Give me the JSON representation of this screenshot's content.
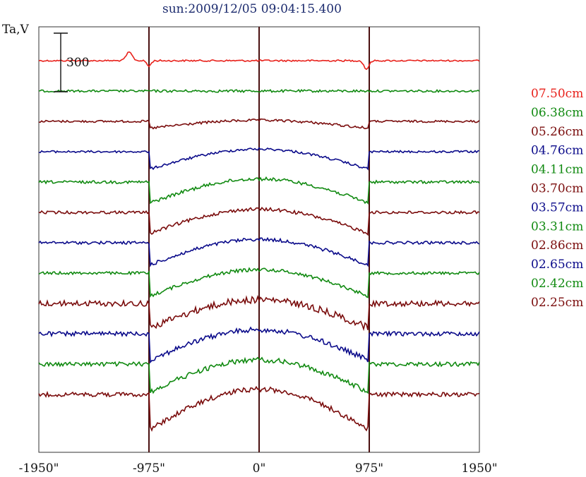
{
  "title": "sun:2009/12/05 09:04:15.400",
  "ylabel": "Ta,V",
  "scale_bar_label": "300",
  "x_ticks": [
    "-1950\"",
    "-975\"",
    "0\"",
    "975\"",
    "1950\""
  ],
  "colors": {
    "red": "#e8201a",
    "green": "#118a11",
    "maroon": "#7a0c0c",
    "blue": "#0a0a8a",
    "frame": "#333333",
    "vline": "#4a1010"
  },
  "chart_data": {
    "type": "line",
    "title": "sun:2009/12/05 09:04:15.400",
    "xlabel": "",
    "ylabel": "Ta,V",
    "xlim": [
      -1950,
      1950
    ],
    "x_ticks": [
      -1950,
      -975,
      0,
      975,
      1950
    ],
    "vertical_lines": [
      -975,
      0,
      975
    ],
    "scale_bar": 300,
    "series": [
      {
        "name": "07.50cm",
        "color": "#e8201a",
        "baseline": 0,
        "dip": 0,
        "noise": 1.0,
        "bump": true
      },
      {
        "name": "06.38cm",
        "color": "#118a11",
        "baseline": 1,
        "dip": 0,
        "noise": 1.5
      },
      {
        "name": "05.26cm",
        "color": "#7a0c0c",
        "baseline": 2,
        "dip": 10,
        "noise": 1.5
      },
      {
        "name": "04.76cm",
        "color": "#0a0a8a",
        "baseline": 3,
        "dip": 25,
        "noise": 1.5
      },
      {
        "name": "04.11cm",
        "color": "#118a11",
        "baseline": 4,
        "dip": 30,
        "noise": 2.0
      },
      {
        "name": "03.70cm",
        "color": "#7a0c0c",
        "baseline": 5,
        "dip": 30,
        "noise": 2.0
      },
      {
        "name": "03.57cm",
        "color": "#0a0a8a",
        "baseline": 6,
        "dip": 32,
        "noise": 2.0
      },
      {
        "name": "03.31cm",
        "color": "#118a11",
        "baseline": 7,
        "dip": 33,
        "noise": 2.0
      },
      {
        "name": "02.86cm",
        "color": "#7a0c0c",
        "baseline": 8,
        "dip": 35,
        "noise": 4.0
      },
      {
        "name": "02.65cm",
        "color": "#0a0a8a",
        "baseline": 9,
        "dip": 38,
        "noise": 3.0
      },
      {
        "name": "02.42cm",
        "color": "#118a11",
        "baseline": 10,
        "dip": 40,
        "noise": 3.0
      },
      {
        "name": "02.25cm",
        "color": "#7a0c0c",
        "baseline": 11,
        "dip": 50,
        "noise": 3.0
      }
    ]
  },
  "legend": [
    {
      "label": "07.50cm",
      "color": "#e8201a"
    },
    {
      "label": "06.38cm",
      "color": "#118a11"
    },
    {
      "label": "05.26cm",
      "color": "#7a0c0c"
    },
    {
      "label": "04.76cm",
      "color": "#0a0a8a"
    },
    {
      "label": "04.11cm",
      "color": "#118a11"
    },
    {
      "label": "03.70cm",
      "color": "#7a0c0c"
    },
    {
      "label": "03.57cm",
      "color": "#0a0a8a"
    },
    {
      "label": "03.31cm",
      "color": "#118a11"
    },
    {
      "label": "02.86cm",
      "color": "#7a0c0c"
    },
    {
      "label": "02.65cm",
      "color": "#0a0a8a"
    },
    {
      "label": "02.42cm",
      "color": "#118a11"
    },
    {
      "label": "02.25cm",
      "color": "#7a0c0c"
    }
  ]
}
